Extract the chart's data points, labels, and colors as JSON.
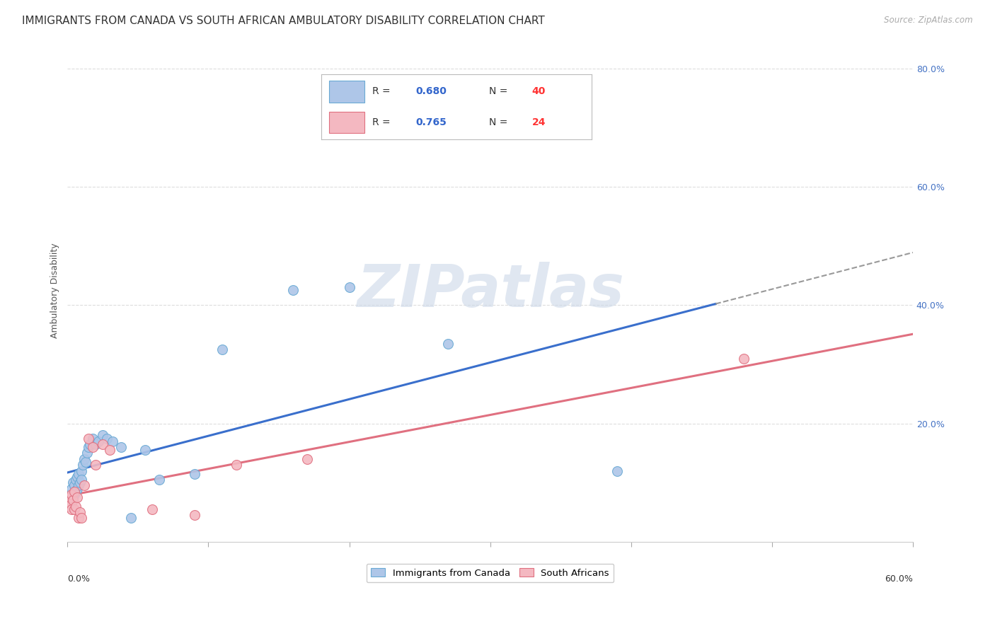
{
  "title": "IMMIGRANTS FROM CANADA VS SOUTH AFRICAN AMBULATORY DISABILITY CORRELATION CHART",
  "source": "Source: ZipAtlas.com",
  "ylabel": "Ambulatory Disability",
  "xlim": [
    0.0,
    0.6
  ],
  "ylim": [
    0.0,
    0.85
  ],
  "background_color": "#ffffff",
  "grid_color": "#dddddd",
  "title_fontsize": 11,
  "axis_label_fontsize": 9,
  "tick_fontsize": 9,
  "marker_size": 100,
  "watermark": "ZIPatlas",
  "watermark_color": "#ccd8e8",
  "series_canada": {
    "color": "#aec6e8",
    "border_color": "#6aaad4",
    "line_color": "#3a6fcc",
    "line_solid_end": 0.46,
    "line_dash_start": 0.46,
    "line_dash_end": 0.6,
    "x": [
      0.001,
      0.002,
      0.002,
      0.003,
      0.003,
      0.004,
      0.004,
      0.005,
      0.005,
      0.006,
      0.006,
      0.007,
      0.007,
      0.008,
      0.008,
      0.009,
      0.01,
      0.01,
      0.011,
      0.012,
      0.013,
      0.014,
      0.015,
      0.016,
      0.018,
      0.02,
      0.022,
      0.025,
      0.028,
      0.032,
      0.038,
      0.045,
      0.055,
      0.065,
      0.09,
      0.11,
      0.16,
      0.2,
      0.27,
      0.39
    ],
    "y": [
      0.06,
      0.07,
      0.08,
      0.065,
      0.09,
      0.075,
      0.1,
      0.08,
      0.095,
      0.085,
      0.105,
      0.09,
      0.11,
      0.095,
      0.115,
      0.1,
      0.12,
      0.105,
      0.13,
      0.14,
      0.135,
      0.15,
      0.16,
      0.165,
      0.175,
      0.165,
      0.17,
      0.18,
      0.175,
      0.17,
      0.16,
      0.04,
      0.155,
      0.105,
      0.115,
      0.325,
      0.425,
      0.43,
      0.335,
      0.12
    ]
  },
  "series_safrica": {
    "color": "#f4b8c1",
    "border_color": "#e07080",
    "line_color": "#e07080",
    "x": [
      0.001,
      0.002,
      0.002,
      0.003,
      0.003,
      0.004,
      0.005,
      0.005,
      0.006,
      0.007,
      0.008,
      0.009,
      0.01,
      0.012,
      0.015,
      0.018,
      0.02,
      0.025,
      0.03,
      0.06,
      0.09,
      0.12,
      0.17,
      0.48
    ],
    "y": [
      0.06,
      0.065,
      0.075,
      0.055,
      0.08,
      0.07,
      0.055,
      0.085,
      0.06,
      0.075,
      0.04,
      0.05,
      0.04,
      0.095,
      0.175,
      0.16,
      0.13,
      0.165,
      0.155,
      0.055,
      0.045,
      0.13,
      0.14,
      0.31
    ]
  },
  "legend_R_color": "#3366cc",
  "legend_N_color": "#ff3333"
}
